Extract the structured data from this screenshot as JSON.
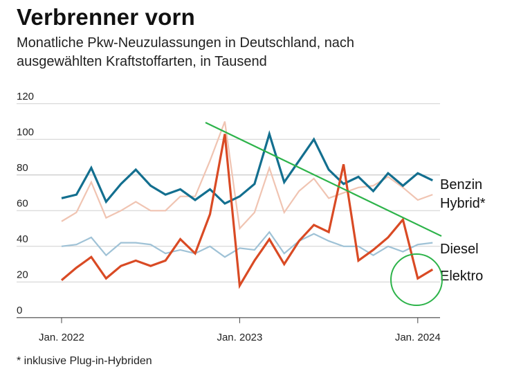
{
  "chart_data": {
    "type": "line",
    "title": "Verbrenner vorn",
    "subtitle": "Monatliche Pkw-Neuzulassungen in Deutschland, nach ausgewählten Kraftstoffarten, in Tausend",
    "footnote": "* inklusive Plug-in-Hybriden",
    "xlabel": "",
    "ylabel": "",
    "ylim": [
      0,
      120
    ],
    "yticks": [
      "0",
      "20",
      "40",
      "60",
      "80",
      "100",
      "120"
    ],
    "xtick_labels": [
      "Jan. 2022",
      "Jan. 2023",
      "Jan. 2024"
    ],
    "x": [
      "2022-01",
      "2022-02",
      "2022-03",
      "2022-04",
      "2022-05",
      "2022-06",
      "2022-07",
      "2022-08",
      "2022-09",
      "2022-10",
      "2022-11",
      "2022-12",
      "2023-01",
      "2023-02",
      "2023-03",
      "2023-04",
      "2023-05",
      "2023-06",
      "2023-07",
      "2023-08",
      "2023-09",
      "2023-10",
      "2023-11",
      "2023-12",
      "2024-01",
      "2024-02"
    ],
    "grid": true,
    "legend": "direct labels at right end",
    "series": [
      {
        "name": "Hybrid*",
        "color": "#f0c4b2",
        "values": [
          54,
          59,
          76,
          56,
          60,
          65,
          60,
          60,
          68,
          68,
          88,
          110,
          50,
          59,
          84,
          59,
          71,
          78,
          67,
          70,
          73,
          74,
          79,
          73,
          66,
          69
        ]
      },
      {
        "name": "Diesel",
        "color": "#9fc2d6",
        "values": [
          40,
          41,
          45,
          35,
          42,
          42,
          41,
          36,
          38,
          36,
          40,
          34,
          39,
          38,
          48,
          36,
          43,
          47,
          43,
          40,
          40,
          35,
          40,
          37,
          41,
          42
        ]
      },
      {
        "name": "Benzin",
        "color": "#136f8f",
        "values": [
          67,
          69,
          84,
          65,
          75,
          83,
          74,
          69,
          72,
          66,
          72,
          64,
          68,
          75,
          103,
          76,
          88,
          100,
          83,
          75,
          79,
          71,
          81,
          74,
          81,
          77
        ]
      },
      {
        "name": "Elektro",
        "color": "#d94a24",
        "values": [
          21,
          28,
          34,
          22,
          29,
          32,
          29,
          32,
          44,
          36,
          58,
          103,
          18,
          32,
          44,
          30,
          43,
          52,
          48,
          86,
          32,
          38,
          45,
          55,
          22,
          27
        ]
      }
    ],
    "annotations": {
      "trend_line_color": "#2db34a",
      "circle_color": "#2db34a",
      "trend_line": "downward line from Nov. 2022 to Feb. 2024",
      "circle": "around Elektro Jan. 2024"
    }
  }
}
